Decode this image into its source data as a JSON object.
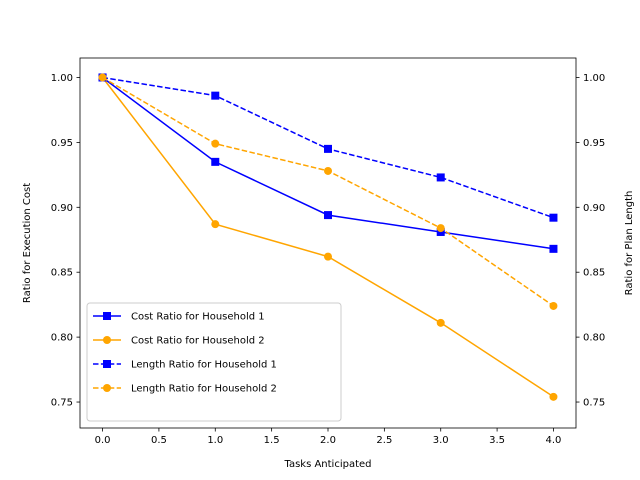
{
  "chart_data": {
    "type": "line",
    "title": "",
    "xlabel": "Tasks Anticipated",
    "ylabel_left": "Ratio for Execution Cost",
    "ylabel_right": "Ratio for Plan Length",
    "xlim": [
      -0.2,
      4.2
    ],
    "ylim_left": [
      0.73,
      1.015
    ],
    "ylim_right": [
      0.73,
      1.015
    ],
    "x_ticks": [
      0.0,
      0.5,
      1.0,
      1.5,
      2.0,
      2.5,
      3.0,
      3.5,
      4.0
    ],
    "x_tick_labels": [
      "0.0",
      "0.5",
      "1.0",
      "1.5",
      "2.0",
      "2.5",
      "3.0",
      "3.5",
      "4.0"
    ],
    "y_ticks": [
      0.75,
      0.8,
      0.85,
      0.9,
      0.95,
      1.0
    ],
    "y_tick_labels": [
      "0.75",
      "0.80",
      "0.85",
      "0.90",
      "0.95",
      "1.00"
    ],
    "grid": false,
    "legend_position": "lower-left",
    "series": [
      {
        "name": "Cost Ratio for Household 1",
        "axis": "left",
        "color": "#0000ff",
        "linestyle": "solid",
        "marker": "square",
        "x": [
          0,
          1,
          2,
          3,
          4
        ],
        "values": [
          1.0,
          0.935,
          0.894,
          0.881,
          0.868
        ]
      },
      {
        "name": "Cost Ratio for Household 2",
        "axis": "left",
        "color": "#ffa500",
        "linestyle": "solid",
        "marker": "circle",
        "x": [
          0,
          1,
          2,
          3,
          4
        ],
        "values": [
          1.0,
          0.887,
          0.862,
          0.811,
          0.754
        ]
      },
      {
        "name": "Length Ratio for Household 1",
        "axis": "right",
        "color": "#0000ff",
        "linestyle": "dashed",
        "marker": "square",
        "x": [
          0,
          1,
          2,
          3,
          4
        ],
        "values": [
          1.0,
          0.986,
          0.945,
          0.923,
          0.892
        ]
      },
      {
        "name": "Length Ratio for Household 2",
        "axis": "right",
        "color": "#ffa500",
        "linestyle": "dashed",
        "marker": "circle",
        "x": [
          0,
          1,
          2,
          3,
          4
        ],
        "values": [
          1.0,
          0.949,
          0.928,
          0.884,
          0.824
        ]
      }
    ]
  }
}
